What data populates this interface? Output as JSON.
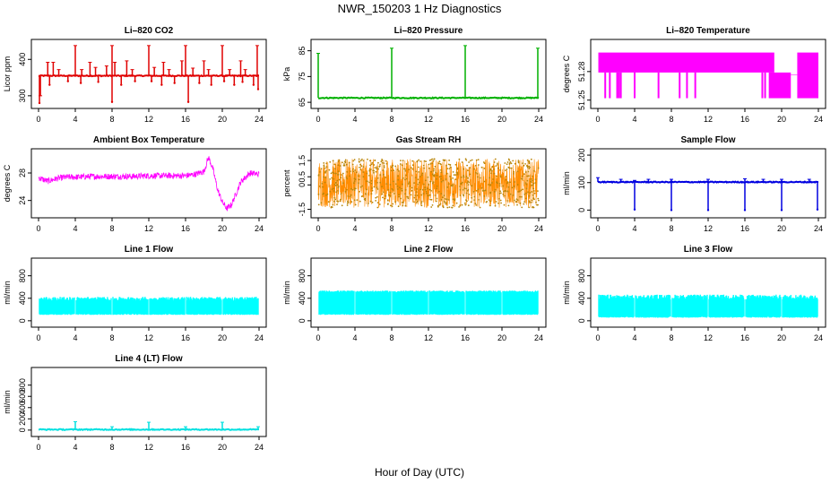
{
  "figure": {
    "title": "NWR_150203  1 Hz Diagnostics",
    "xlabel": "Hour of Day (UTC)"
  },
  "chart_data": [
    {
      "id": "co2",
      "type": "line",
      "title": "Li–820 CO2",
      "ylabel": "Licor ppm",
      "color": "#e00000",
      "xlim": [
        0,
        24
      ],
      "ylim": [
        275,
        445
      ],
      "xticks": [
        "0",
        "4",
        "8",
        "12",
        "16",
        "20",
        "24"
      ],
      "yticks": [
        300,
        400
      ],
      "baseline": 355,
      "pattern": "baseline-spikes",
      "spikes_high": [
        [
          0.2,
          300
        ],
        [
          1.0,
          392
        ],
        [
          1.6,
          392
        ],
        [
          2.2,
          372
        ],
        [
          4.0,
          438
        ],
        [
          4.7,
          372
        ],
        [
          5.6,
          392
        ],
        [
          6.2,
          378
        ],
        [
          7.4,
          382
        ],
        [
          8.0,
          438
        ],
        [
          8.3,
          392
        ],
        [
          9.6,
          396
        ],
        [
          10.2,
          372
        ],
        [
          12.0,
          438
        ],
        [
          12.6,
          378
        ],
        [
          13.6,
          392
        ],
        [
          14.2,
          372
        ],
        [
          15.6,
          396
        ],
        [
          16.0,
          438
        ],
        [
          16.8,
          376
        ],
        [
          18.0,
          396
        ],
        [
          18.5,
          372
        ],
        [
          20.0,
          438
        ],
        [
          20.8,
          372
        ],
        [
          22.0,
          396
        ],
        [
          22.5,
          372
        ],
        [
          23.8,
          438
        ]
      ],
      "spikes_low": [
        [
          0.1,
          280
        ],
        [
          1.2,
          330
        ],
        [
          3.2,
          340
        ],
        [
          4.6,
          335
        ],
        [
          6.5,
          338
        ],
        [
          8.0,
          283
        ],
        [
          9.0,
          330
        ],
        [
          10.5,
          340
        ],
        [
          12.3,
          340
        ],
        [
          13.4,
          330
        ],
        [
          14.8,
          335
        ],
        [
          16.3,
          283
        ],
        [
          17.5,
          335
        ],
        [
          18.8,
          330
        ],
        [
          20.2,
          340
        ],
        [
          21.3,
          330
        ],
        [
          22.2,
          338
        ],
        [
          23.4,
          330
        ],
        [
          23.9,
          318
        ]
      ]
    },
    {
      "id": "pressure",
      "type": "line",
      "title": "Li–820 Pressure",
      "ylabel": "kPa",
      "color": "#00b000",
      "xlim": [
        0,
        24
      ],
      "ylim": [
        64,
        88
      ],
      "xticks": [
        "0",
        "4",
        "8",
        "12",
        "16",
        "20",
        "24"
      ],
      "yticks": [
        65,
        75,
        85
      ],
      "baseline": 66.7,
      "pattern": "baseline-spikes",
      "spikes_high": [
        [
          0.0,
          84
        ],
        [
          8.0,
          86
        ],
        [
          16.0,
          87
        ],
        [
          23.9,
          86
        ]
      ],
      "spikes_low": []
    },
    {
      "id": "licor_temp",
      "type": "area",
      "title": "Li–820 Temperature",
      "ylabel": "degrees C",
      "color": "#ff00ff",
      "xlim": [
        0,
        24
      ],
      "ylim": [
        51.245,
        51.31
      ],
      "xticks": [
        "0",
        "4",
        "8",
        "12",
        "16",
        "20",
        "24"
      ],
      "yticks": [
        51.25,
        51.28
      ],
      "pattern": "band"
    },
    {
      "id": "box_temp",
      "type": "line",
      "title": "Ambient Box Temperature",
      "ylabel": "degrees C",
      "color": "#ff00ff",
      "xlim": [
        0,
        24
      ],
      "ylim": [
        22,
        31
      ],
      "xticks": [
        "0",
        "4",
        "8",
        "12",
        "16",
        "20",
        "24"
      ],
      "yticks": [
        24,
        28
      ],
      "pattern": "noise",
      "x": [
        0,
        1,
        2,
        3,
        4,
        6,
        8,
        10,
        12,
        14,
        16,
        17,
        18,
        18.5,
        19,
        19.5,
        20,
        20.5,
        21,
        21.5,
        22,
        23,
        24
      ],
      "y": [
        27.3,
        26.8,
        27.2,
        27.4,
        27.4,
        27.5,
        27.5,
        27.5,
        27.6,
        27.6,
        27.6,
        27.8,
        28.2,
        30.3,
        28.5,
        25.5,
        23.8,
        22.8,
        23.4,
        25.0,
        26.7,
        28.0,
        27.8
      ],
      "noise": 0.45
    },
    {
      "id": "rh",
      "type": "scatter",
      "title": "Gas Stream RH",
      "ylabel": "percent",
      "color": "#ff8c00",
      "xlim": [
        0,
        24
      ],
      "ylim": [
        -1.8,
        2.0
      ],
      "xticks": [
        "0",
        "4",
        "8",
        "12",
        "16",
        "20",
        "24"
      ],
      "yticks": [
        -1.5,
        0,
        0.5,
        1.5
      ],
      "pattern": "noise",
      "x": [
        0,
        24
      ],
      "y": [
        0.1,
        0.1
      ],
      "noise": 1.5
    },
    {
      "id": "sample_flow",
      "type": "line",
      "title": "Sample Flow",
      "ylabel": "ml/min",
      "color": "#0000e0",
      "xlim": [
        0,
        24
      ],
      "ylim": [
        -15,
        210
      ],
      "xticks": [
        "0",
        "4",
        "8",
        "12",
        "16",
        "20",
        "24"
      ],
      "yticks": [
        0,
        100,
        200
      ],
      "baseline": 102,
      "pattern": "baseline-spikes",
      "spikes_high": [
        [
          0.0,
          118
        ],
        [
          2.5,
          112
        ],
        [
          4.0,
          108
        ],
        [
          5.5,
          112
        ],
        [
          8.0,
          112
        ],
        [
          12.0,
          112
        ],
        [
          16.0,
          114
        ],
        [
          18.0,
          112
        ],
        [
          20.0,
          112
        ],
        [
          23.0,
          112
        ]
      ],
      "spikes_low": [
        [
          4.0,
          2
        ],
        [
          8.0,
          0
        ],
        [
          12.0,
          0
        ],
        [
          16.0,
          0
        ],
        [
          20.0,
          0
        ],
        [
          23.9,
          2
        ]
      ]
    },
    {
      "id": "line1",
      "type": "area",
      "title": "Line 1 Flow",
      "ylabel": "ml/min",
      "color": "#00ffff",
      "xlim": [
        0,
        24
      ],
      "ylim": [
        -50,
        1050
      ],
      "xticks": [
        "0",
        "4",
        "8",
        "12",
        "16",
        "20",
        "24"
      ],
      "yticks": [
        0,
        400,
        800
      ],
      "pattern": "band",
      "band_low": 110,
      "band_high": 390,
      "band_noise": 70
    },
    {
      "id": "line2",
      "type": "area",
      "title": "Line 2 Flow",
      "ylabel": "ml/min",
      "color": "#00ffff",
      "xlim": [
        0,
        24
      ],
      "ylim": [
        -50,
        1050
      ],
      "xticks": [
        "0",
        "4",
        "8",
        "12",
        "16",
        "20",
        "24"
      ],
      "yticks": [
        0,
        400,
        800
      ],
      "pattern": "band",
      "band_low": 110,
      "band_high": 520,
      "band_noise": 35
    },
    {
      "id": "line3",
      "type": "area",
      "title": "Line 3 Flow",
      "ylabel": "ml/min",
      "color": "#00ffff",
      "xlim": [
        0,
        24
      ],
      "ylim": [
        -50,
        1050
      ],
      "xticks": [
        "0",
        "4",
        "8",
        "12",
        "16",
        "20",
        "24"
      ],
      "yticks": [
        0,
        400,
        800
      ],
      "pattern": "band",
      "band_low": 60,
      "band_high": 420,
      "band_noise": 90
    },
    {
      "id": "line4",
      "type": "line",
      "title": "Line 4 (LT) Flow",
      "ylabel": "ml/min",
      "color": "#00e0e0",
      "xlim": [
        0,
        24
      ],
      "ylim": [
        -50,
        1050
      ],
      "xticks": [
        "0",
        "4",
        "8",
        "12",
        "16",
        "20",
        "24"
      ],
      "yticks": [
        0,
        200,
        400,
        600,
        800
      ],
      "baseline": 10,
      "pattern": "baseline-spikes",
      "spikes_high": [
        [
          4.0,
          150
        ],
        [
          8.0,
          60
        ],
        [
          12.0,
          140
        ],
        [
          16.0,
          60
        ],
        [
          20.0,
          140
        ],
        [
          23.9,
          60
        ]
      ],
      "spikes_low": []
    }
  ]
}
